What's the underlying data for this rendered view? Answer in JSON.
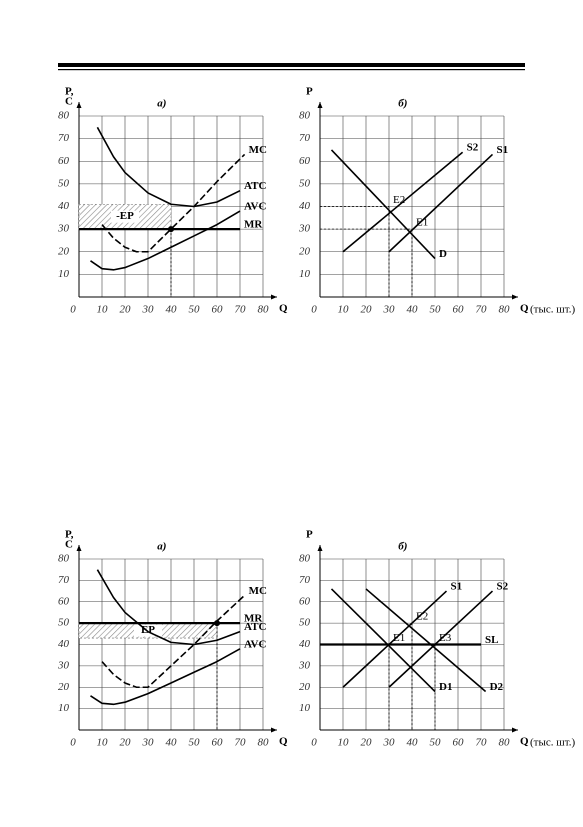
{
  "chart_data": [
    {
      "type": "line",
      "title": "а)",
      "ylabel": [
        "P,",
        "C"
      ],
      "xlabel": "Q",
      "xlim": [
        0,
        80
      ],
      "ylim": [
        0,
        80
      ],
      "xticks": [
        0,
        10,
        20,
        30,
        40,
        50,
        60,
        70,
        80
      ],
      "yticks": [
        10,
        20,
        30,
        40,
        50,
        60,
        70,
        80
      ],
      "grid": true,
      "series": [
        {
          "name": "MC",
          "color": "#000000",
          "style": "dashed",
          "x": [
            10,
            15,
            20,
            25,
            30,
            40,
            50,
            60,
            72
          ],
          "values": [
            32,
            26,
            22,
            20,
            20,
            30,
            40,
            51,
            63
          ]
        },
        {
          "name": "ATC",
          "color": "#000000",
          "style": "solid",
          "x": [
            8,
            15,
            20,
            30,
            40,
            50,
            60,
            70
          ],
          "values": [
            75,
            62,
            55,
            46,
            41,
            40,
            42,
            47
          ]
        },
        {
          "name": "AVC",
          "color": "#000000",
          "style": "solid",
          "x": [
            5,
            10,
            15,
            20,
            30,
            40,
            50,
            60,
            70
          ],
          "values": [
            16,
            12.5,
            12,
            13,
            17,
            22,
            27,
            32,
            38
          ]
        },
        {
          "name": "MR",
          "color": "#000000",
          "style": "bold",
          "x": [
            0,
            70
          ],
          "values": [
            30,
            30
          ]
        }
      ],
      "regions": [
        {
          "label": "-EP",
          "x": [
            0,
            40
          ],
          "y": [
            30,
            41
          ]
        }
      ],
      "points": [
        {
          "x": 40,
          "y": 30
        }
      ],
      "guides": "x"
    },
    {
      "type": "line",
      "title": "б)",
      "ylabel": [
        "P"
      ],
      "xlabel": "Q",
      "xunit": "(тыс. шт.)",
      "xlim": [
        0,
        80
      ],
      "ylim": [
        0,
        80
      ],
      "xticks": [
        0,
        10,
        20,
        30,
        40,
        50,
        60,
        70,
        80
      ],
      "yticks": [
        10,
        20,
        30,
        40,
        50,
        60,
        70,
        80
      ],
      "grid": true,
      "series": [
        {
          "name": "S2",
          "color": "#000000",
          "style": "solid",
          "x": [
            10,
            62
          ],
          "values": [
            20,
            64
          ]
        },
        {
          "name": "S1",
          "color": "#000000",
          "style": "solid",
          "x": [
            30,
            75
          ],
          "values": [
            20,
            63
          ]
        },
        {
          "name": "D",
          "color": "#000000",
          "style": "solid",
          "x": [
            5,
            50
          ],
          "values": [
            65,
            17
          ]
        }
      ],
      "points": [
        {
          "label": "E2",
          "x": 30,
          "y": 40
        },
        {
          "label": "E1",
          "x": 40,
          "y": 30
        }
      ],
      "guides": "xy"
    },
    {
      "type": "line",
      "title": "а)",
      "ylabel": [
        "P,",
        "C"
      ],
      "xlabel": "Q",
      "xlim": [
        0,
        80
      ],
      "ylim": [
        0,
        80
      ],
      "xticks": [
        0,
        10,
        20,
        30,
        40,
        50,
        60,
        70,
        80
      ],
      "yticks": [
        10,
        20,
        30,
        40,
        50,
        60,
        70,
        80
      ],
      "grid": true,
      "series": [
        {
          "name": "MC",
          "color": "#000000",
          "style": "dashed",
          "x": [
            10,
            15,
            20,
            25,
            30,
            40,
            50,
            60,
            72
          ],
          "values": [
            32,
            26,
            22,
            20,
            20,
            30,
            40,
            51,
            63
          ]
        },
        {
          "name": "MR",
          "color": "#000000",
          "style": "bold",
          "x": [
            0,
            70
          ],
          "values": [
            50,
            50
          ]
        },
        {
          "name": "ATC",
          "color": "#000000",
          "style": "solid",
          "x": [
            8,
            15,
            20,
            30,
            40,
            50,
            60,
            70
          ],
          "values": [
            75,
            62,
            55,
            46,
            41,
            40,
            42,
            46
          ]
        },
        {
          "name": "AVC",
          "color": "#000000",
          "style": "solid",
          "x": [
            5,
            10,
            15,
            20,
            30,
            40,
            50,
            60,
            70
          ],
          "values": [
            16,
            12.5,
            12,
            13,
            17,
            22,
            27,
            32,
            38
          ]
        }
      ],
      "regions": [
        {
          "label": "EP",
          "x": [
            0,
            60
          ],
          "y": [
            43,
            50
          ]
        }
      ],
      "points": [
        {
          "x": 60,
          "y": 50
        }
      ],
      "guides": "x"
    },
    {
      "type": "line",
      "title": "б)",
      "ylabel": [
        "P"
      ],
      "xlabel": "Q",
      "xunit": "(тыс. шт.)",
      "xlim": [
        0,
        80
      ],
      "ylim": [
        0,
        80
      ],
      "xticks": [
        0,
        10,
        20,
        30,
        40,
        50,
        60,
        70,
        80
      ],
      "yticks": [
        10,
        20,
        30,
        40,
        50,
        60,
        70,
        80
      ],
      "grid": true,
      "series": [
        {
          "name": "S1",
          "color": "#000000",
          "style": "solid",
          "x": [
            10,
            55
          ],
          "values": [
            20,
            65
          ]
        },
        {
          "name": "S2",
          "color": "#000000",
          "style": "solid",
          "x": [
            30,
            75
          ],
          "values": [
            20,
            65
          ]
        },
        {
          "name": "SL",
          "color": "#000000",
          "style": "bold",
          "x": [
            0,
            70
          ],
          "values": [
            40,
            40
          ]
        },
        {
          "name": "D1",
          "color": "#000000",
          "style": "solid",
          "x": [
            5,
            50
          ],
          "values": [
            66,
            18
          ]
        },
        {
          "name": "D2",
          "color": "#000000",
          "style": "solid",
          "x": [
            20,
            72
          ],
          "values": [
            66,
            18
          ]
        }
      ],
      "points": [
        {
          "label": "E1",
          "x": 30,
          "y": 40
        },
        {
          "label": "E2",
          "x": 40,
          "y": 50
        },
        {
          "label": "E3",
          "x": 50,
          "y": 40
        }
      ],
      "guides": "x"
    }
  ]
}
